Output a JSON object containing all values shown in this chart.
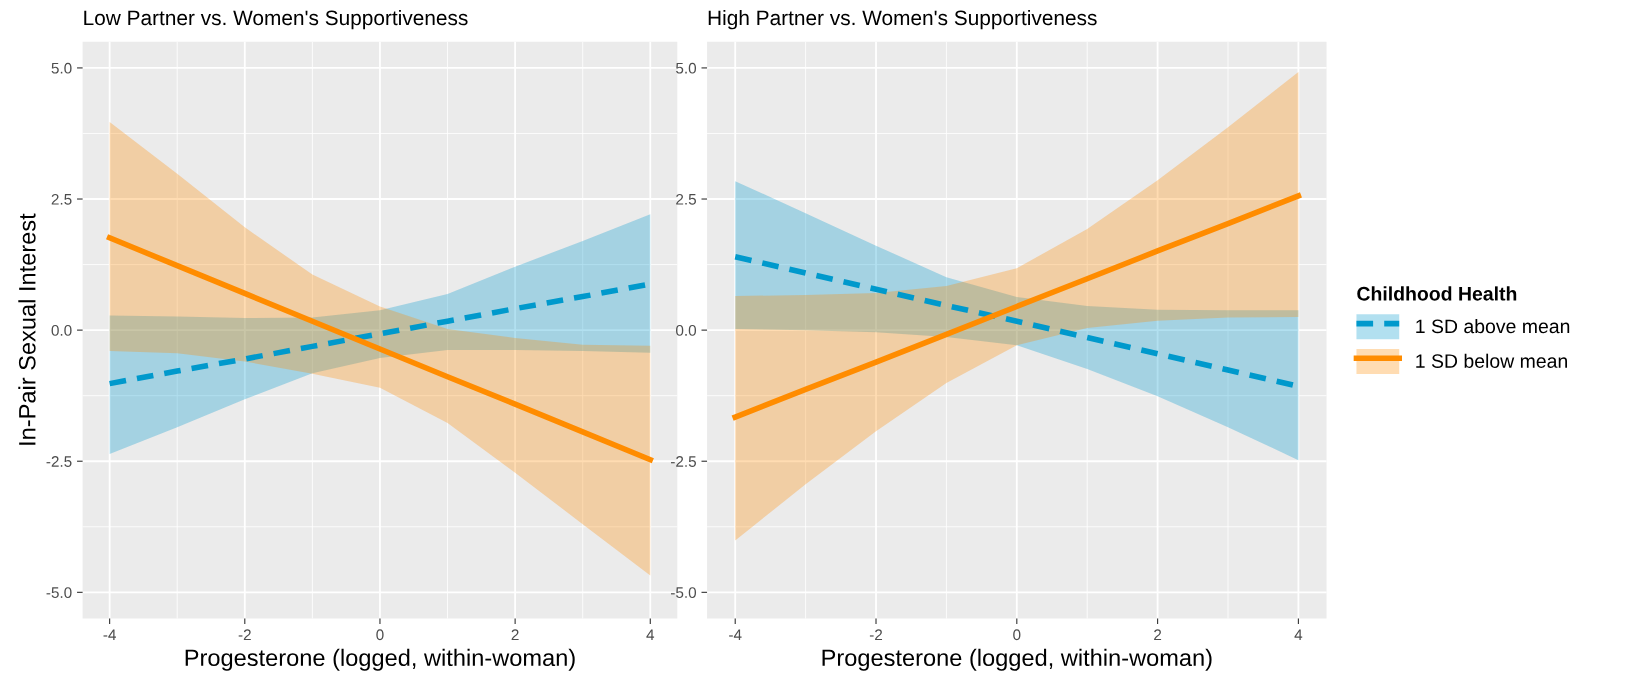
{
  "chart_data": [
    {
      "type": "line",
      "title": "Low Partner vs. Women's Supportiveness",
      "xlabel": "Progesterone (logged, within-woman)",
      "ylabel": "In-Pair Sexual Interest",
      "x": [
        -4,
        -3,
        -2,
        -1,
        0,
        1,
        2,
        3,
        4
      ],
      "xlim": [
        -4.4,
        4.4
      ],
      "xticks": [
        -4,
        -2,
        0,
        2,
        4
      ],
      "ylim": [
        -5.5,
        5.5
      ],
      "yticks": [
        {
          "value": -5,
          "label": "-5.0"
        },
        {
          "value": -2.5,
          "label": "-2.5"
        },
        {
          "value": 0,
          "label": "0.0"
        },
        {
          "value": 2.5,
          "label": "2.5"
        },
        {
          "value": 5,
          "label": "5.0"
        }
      ],
      "grid": true,
      "legend": false,
      "series": [
        {
          "color": "#0099cc",
          "line_style": "dashed",
          "values": [
            -1.02,
            -0.78,
            -0.55,
            -0.31,
            -0.07,
            0.17,
            0.41,
            0.64,
            0.88
          ],
          "lower": [
            -2.36,
            -1.85,
            -1.32,
            -0.82,
            -0.53,
            -0.38,
            -0.38,
            -0.4,
            -0.43
          ],
          "upper": [
            0.28,
            0.26,
            0.23,
            0.24,
            0.38,
            0.69,
            1.21,
            1.7,
            2.21
          ]
        },
        {
          "color": "#ff8c00",
          "line_style": "solid",
          "values": [
            1.76,
            1.23,
            0.7,
            0.17,
            -0.36,
            -0.89,
            -1.41,
            -1.94,
            -2.47
          ],
          "lower": [
            -0.4,
            -0.44,
            -0.6,
            -0.83,
            -1.1,
            -1.77,
            -2.72,
            -3.7,
            -4.68
          ],
          "upper": [
            3.97,
            2.98,
            1.96,
            1.06,
            0.45,
            0.02,
            -0.15,
            -0.28,
            -0.3
          ]
        }
      ]
    },
    {
      "type": "line",
      "title": "High Partner vs. Women's Supportiveness",
      "xlabel": "Progesterone (logged, within-woman)",
      "legend_title": "Childhood Health",
      "x": [
        -4,
        -3,
        -2,
        -1,
        0,
        1,
        2,
        3,
        4
      ],
      "xlim": [
        -4.4,
        4.4
      ],
      "xticks": [
        -4,
        -2,
        0,
        2,
        4
      ],
      "ylim": [
        -5.5,
        5.5
      ],
      "yticks": [
        {
          "value": -5,
          "label": "-5.0"
        },
        {
          "value": -2.5,
          "label": "-2.5"
        },
        {
          "value": 0,
          "label": "0.0"
        },
        {
          "value": 2.5,
          "label": "2.5"
        },
        {
          "value": 5,
          "label": "5.0"
        }
      ],
      "grid": true,
      "legend": "right",
      "series": [
        {
          "name": "1 SD above mean",
          "color": "#0099cc",
          "line_style": "dashed",
          "values": [
            1.4,
            1.09,
            0.78,
            0.47,
            0.17,
            -0.14,
            -0.45,
            -0.76,
            -1.07
          ],
          "lower": [
            0.02,
            0,
            -0.04,
            -0.13,
            -0.29,
            -0.74,
            -1.26,
            -1.85,
            -2.48
          ],
          "upper": [
            2.84,
            2.23,
            1.61,
            1.01,
            0.63,
            0.46,
            0.39,
            0.38,
            0.38
          ]
        },
        {
          "name": "1 SD below mean",
          "color": "#ff8c00",
          "line_style": "solid",
          "values": [
            -1.66,
            -1.13,
            -0.61,
            -0.08,
            0.45,
            0.98,
            1.51,
            2.03,
            2.56
          ],
          "lower": [
            -4.01,
            -2.94,
            -1.93,
            -1.01,
            -0.29,
            0.04,
            0.18,
            0.24,
            0.25
          ],
          "upper": [
            0.65,
            0.67,
            0.71,
            0.84,
            1.18,
            1.93,
            2.86,
            3.87,
            4.92
          ]
        }
      ]
    }
  ]
}
